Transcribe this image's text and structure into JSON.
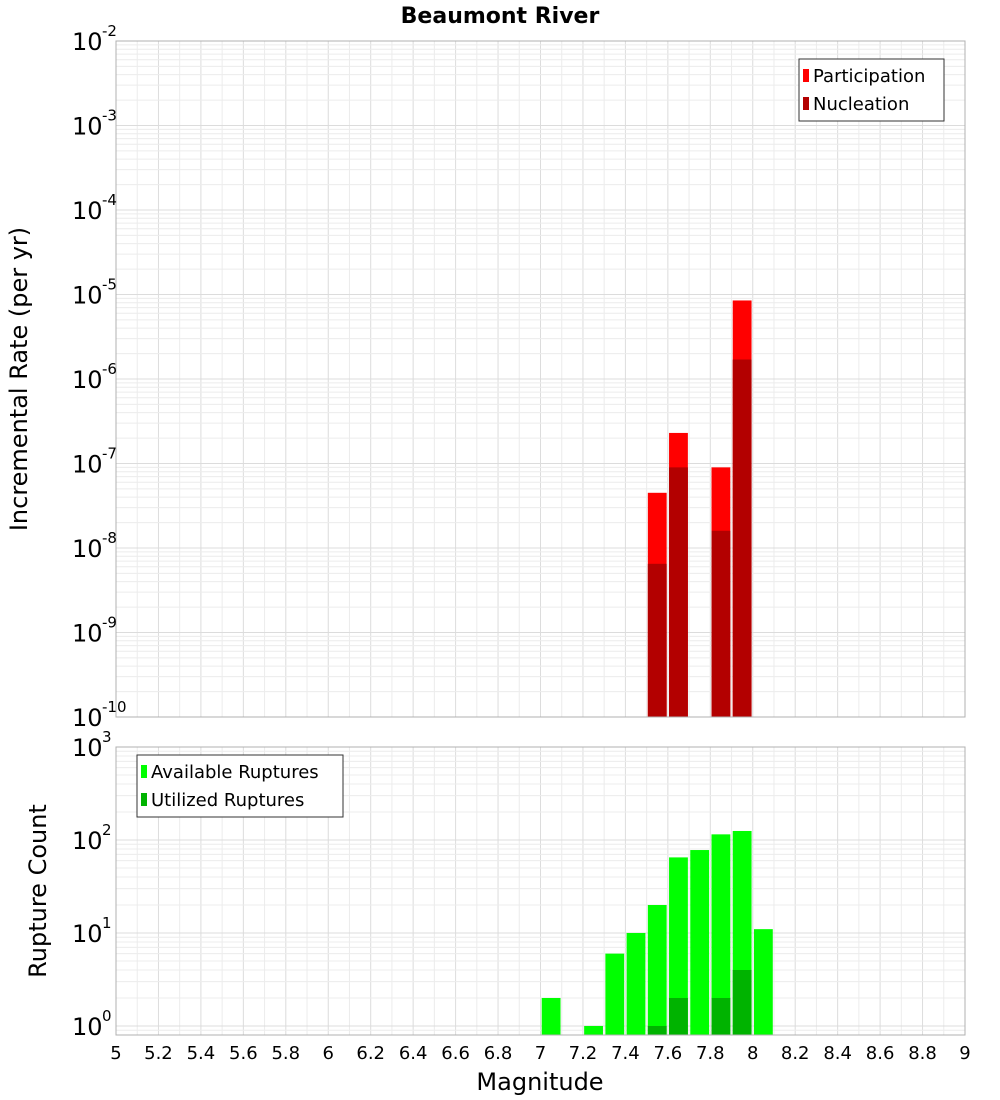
{
  "chart_data": [
    {
      "type": "bar",
      "title": "Beaumont River",
      "xlabel": "",
      "ylabel": "Incremental Rate (per yr)",
      "yscale": "log",
      "ylim": [
        1e-10,
        0.01
      ],
      "xlim": [
        5,
        9
      ],
      "grid": true,
      "legend_position": "top-right",
      "series": [
        {
          "name": "Participation",
          "color": "#ff0000",
          "x": [
            7.55,
            7.65,
            7.85,
            7.95
          ],
          "values": [
            4.5e-08,
            2.3e-07,
            9e-08,
            8.5e-06
          ]
        },
        {
          "name": "Nucleation",
          "color": "#b30000",
          "x": [
            7.55,
            7.65,
            7.85,
            7.95
          ],
          "values": [
            6.5e-09,
            9e-08,
            1.6e-08,
            1.7e-06
          ]
        }
      ]
    },
    {
      "type": "bar",
      "title": "",
      "xlabel": "Magnitude",
      "ylabel": "Rupture Count",
      "yscale": "log",
      "ylim": [
        0.8,
        1000
      ],
      "xlim": [
        5,
        9
      ],
      "grid": true,
      "legend_position": "top-left",
      "series": [
        {
          "name": "Available Ruptures",
          "color": "#00ff00",
          "x": [
            7.05,
            7.25,
            7.35,
            7.45,
            7.55,
            7.65,
            7.75,
            7.85,
            7.95,
            8.05
          ],
          "values": [
            2,
            1,
            6,
            10,
            20,
            65,
            78,
            115,
            125,
            11
          ]
        },
        {
          "name": "Utilized Ruptures",
          "color": "#00b300",
          "x": [
            7.55,
            7.65,
            7.85,
            7.95
          ],
          "values": [
            1,
            2,
            2,
            4
          ]
        }
      ]
    }
  ],
  "x_ticks": [
    "5",
    "5.2",
    "5.4",
    "5.6",
    "5.8",
    "6",
    "6.2",
    "6.4",
    "6.6",
    "6.8",
    "7",
    "7.2",
    "7.4",
    "7.6",
    "7.8",
    "8",
    "8.2",
    "8.4",
    "8.6",
    "8.8",
    "9"
  ],
  "top_y_ticks": [
    {
      "base": "10",
      "exp": "-2"
    },
    {
      "base": "10",
      "exp": "-3"
    },
    {
      "base": "10",
      "exp": "-4"
    },
    {
      "base": "10",
      "exp": "-5"
    },
    {
      "base": "10",
      "exp": "-6"
    },
    {
      "base": "10",
      "exp": "-7"
    },
    {
      "base": "10",
      "exp": "-8"
    },
    {
      "base": "10",
      "exp": "-9"
    },
    {
      "base": "10",
      "exp": "-10"
    }
  ],
  "bottom_y_ticks": [
    {
      "base": "10",
      "exp": "3"
    },
    {
      "base": "10",
      "exp": "2"
    },
    {
      "base": "10",
      "exp": "1"
    },
    {
      "base": "10",
      "exp": "0"
    }
  ]
}
